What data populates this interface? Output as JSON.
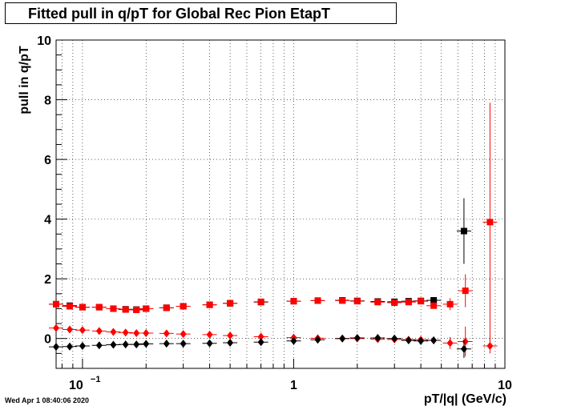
{
  "header": {
    "title": "Fitted pull in q/pT for Global Rec Pion EtapT"
  },
  "footer": {
    "timestamp": "Wed Apr  1 08:40:06 2020"
  },
  "chart_data": {
    "type": "scatter",
    "title": "Fitted pull in q/pT for Global Rec Pion EtapT",
    "xlabel": "pT/|q| (GeV/c)",
    "ylabel": "pull in q/pT",
    "xscale": "log",
    "xlim": [
      0.075,
      10
    ],
    "ylim": [
      -1,
      10
    ],
    "grid": true,
    "x_tick_labels": [
      {
        "value": 0.1,
        "base": "10",
        "exp": "−1"
      },
      {
        "value": 1,
        "base": "1",
        "exp": ""
      },
      {
        "value": 10,
        "base": "10",
        "exp": ""
      }
    ],
    "y_ticks": [
      0,
      2,
      4,
      6,
      8,
      10
    ],
    "series": [
      {
        "marker": "square",
        "color": "#000000",
        "x": [
          0.075,
          0.087,
          0.1,
          0.12,
          0.14,
          0.16,
          0.18,
          0.2,
          0.25,
          0.3,
          0.4,
          0.5,
          0.7,
          1.0,
          1.3,
          1.7,
          2.0,
          2.5,
          3.0,
          3.5,
          4.0,
          4.6,
          6.4
        ],
        "y": [
          1.15,
          1.1,
          1.05,
          1.05,
          1.0,
          0.98,
          0.97,
          1.0,
          1.03,
          1.08,
          1.13,
          1.18,
          1.22,
          1.25,
          1.27,
          1.28,
          1.26,
          1.24,
          1.23,
          1.25,
          1.26,
          1.28,
          3.6
        ],
        "yerr": [
          0.05,
          0.05,
          0.05,
          0.05,
          0.05,
          0.05,
          0.05,
          0.05,
          0.05,
          0.05,
          0.05,
          0.05,
          0.05,
          0.05,
          0.05,
          0.05,
          0.05,
          0.05,
          0.05,
          0.06,
          0.07,
          0.1,
          1.1
        ]
      },
      {
        "marker": "square",
        "color": "#ff0000",
        "x": [
          0.075,
          0.087,
          0.1,
          0.12,
          0.14,
          0.16,
          0.18,
          0.2,
          0.25,
          0.3,
          0.4,
          0.5,
          0.7,
          1.0,
          1.3,
          1.7,
          2.0,
          2.5,
          3.0,
          3.5,
          4.0,
          4.6,
          5.5,
          6.5,
          8.5
        ],
        "y": [
          1.15,
          1.08,
          1.05,
          1.05,
          1.0,
          0.97,
          0.96,
          1.0,
          1.03,
          1.08,
          1.13,
          1.18,
          1.23,
          1.25,
          1.27,
          1.27,
          1.25,
          1.22,
          1.2,
          1.22,
          1.25,
          1.1,
          1.15,
          1.6,
          3.9
        ],
        "yerr": [
          0.05,
          0.05,
          0.05,
          0.05,
          0.05,
          0.05,
          0.05,
          0.05,
          0.05,
          0.05,
          0.05,
          0.05,
          0.05,
          0.05,
          0.05,
          0.05,
          0.05,
          0.05,
          0.05,
          0.06,
          0.07,
          0.1,
          0.2,
          0.55,
          4.0
        ]
      },
      {
        "marker": "diamond",
        "color": "#ff0000",
        "x": [
          0.075,
          0.087,
          0.1,
          0.12,
          0.14,
          0.16,
          0.18,
          0.2,
          0.25,
          0.3,
          0.4,
          0.5,
          0.7,
          1.0,
          1.3,
          1.7,
          2.0,
          2.5,
          3.0,
          3.5,
          4.0,
          4.6,
          5.5,
          6.5,
          8.5
        ],
        "y": [
          0.35,
          0.3,
          0.28,
          0.25,
          0.22,
          0.2,
          0.18,
          0.18,
          0.17,
          0.15,
          0.13,
          0.1,
          0.06,
          0.03,
          0.01,
          0.0,
          0.0,
          -0.02,
          -0.03,
          -0.04,
          -0.04,
          -0.06,
          -0.15,
          -0.1,
          -0.25
        ],
        "yerr": [
          0.05,
          0.05,
          0.05,
          0.05,
          0.05,
          0.05,
          0.05,
          0.05,
          0.05,
          0.05,
          0.05,
          0.05,
          0.05,
          0.05,
          0.05,
          0.05,
          0.05,
          0.05,
          0.05,
          0.05,
          0.06,
          0.08,
          0.2,
          0.5,
          0.25
        ]
      },
      {
        "marker": "diamond",
        "color": "#000000",
        "x": [
          0.075,
          0.087,
          0.1,
          0.12,
          0.14,
          0.16,
          0.18,
          0.2,
          0.25,
          0.3,
          0.4,
          0.5,
          0.7,
          1.0,
          1.3,
          1.7,
          2.0,
          2.5,
          3.0,
          3.5,
          4.0,
          4.6,
          6.4
        ],
        "y": [
          -0.28,
          -0.27,
          -0.25,
          -0.23,
          -0.21,
          -0.2,
          -0.2,
          -0.18,
          -0.17,
          -0.17,
          -0.16,
          -0.14,
          -0.12,
          -0.08,
          -0.04,
          0.0,
          0.02,
          0.02,
          0.0,
          -0.06,
          -0.08,
          -0.06,
          -0.35
        ],
        "yerr": [
          0.05,
          0.05,
          0.05,
          0.05,
          0.05,
          0.05,
          0.05,
          0.05,
          0.05,
          0.05,
          0.05,
          0.05,
          0.05,
          0.05,
          0.05,
          0.05,
          0.05,
          0.05,
          0.05,
          0.06,
          0.07,
          0.1,
          0.3
        ]
      }
    ]
  }
}
